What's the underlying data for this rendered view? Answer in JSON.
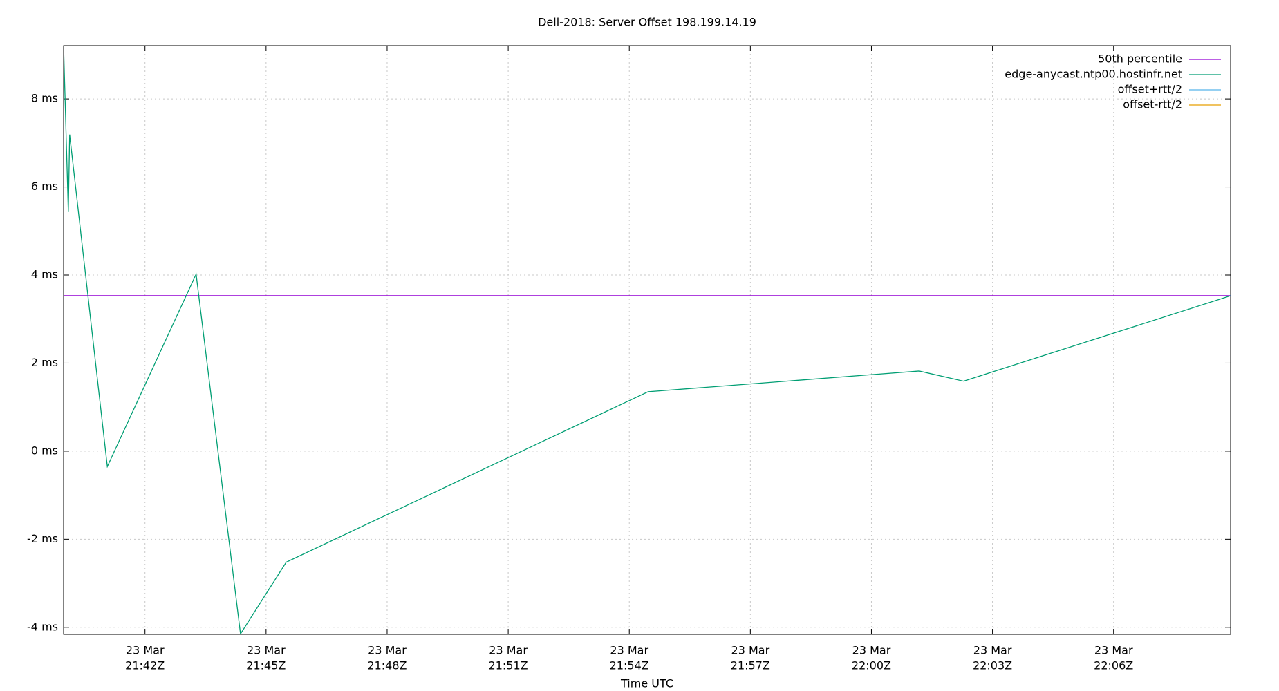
{
  "chart_data": {
    "type": "line",
    "title": "Dell-2018: Server Offset 198.199.14.19",
    "xlabel": "Time UTC",
    "series": [
      {
        "name": "50th percentile",
        "color": "#9400d3",
        "x": [
          "21:39:59",
          "22:08:54"
        ],
        "values": [
          3.53,
          3.53
        ]
      },
      {
        "name": "edge-anycast.ntp00.hostinfr.net",
        "color": "#009e73",
        "x": [
          "21:39:59",
          "21:40:06",
          "21:40:08",
          "21:41:04",
          "21:43:16",
          "21:44:22",
          "21:45:30",
          "21:54:28",
          "22:01:11",
          "22:02:17",
          "22:08:54"
        ],
        "values": [
          9.2,
          5.43,
          7.19,
          -0.35,
          4.02,
          -4.15,
          -2.52,
          1.35,
          1.82,
          1.59,
          3.53
        ]
      },
      {
        "name": "offset+rtt/2",
        "color": "#56b4e9",
        "x": [],
        "values": []
      },
      {
        "name": "offset-rtt/2",
        "color": "#e69f00",
        "x": [],
        "values": []
      }
    ],
    "xlim": [
      "21:39:59",
      "22:08:54"
    ],
    "xticks": [
      {
        "value": "21:42:00",
        "label": [
          "23 Mar",
          "21:42Z"
        ]
      },
      {
        "value": "21:45:00",
        "label": [
          "23 Mar",
          "21:45Z"
        ]
      },
      {
        "value": "21:48:00",
        "label": [
          "23 Mar",
          "21:48Z"
        ]
      },
      {
        "value": "21:51:00",
        "label": [
          "23 Mar",
          "21:51Z"
        ]
      },
      {
        "value": "21:54:00",
        "label": [
          "23 Mar",
          "21:54Z"
        ]
      },
      {
        "value": "21:57:00",
        "label": [
          "23 Mar",
          "21:57Z"
        ]
      },
      {
        "value": "22:00:00",
        "label": [
          "23 Mar",
          "22:00Z"
        ]
      },
      {
        "value": "22:03:00",
        "label": [
          "23 Mar",
          "22:03Z"
        ]
      },
      {
        "value": "22:06:00",
        "label": [
          "23 Mar",
          "22:06Z"
        ]
      }
    ],
    "ylim": [
      -4.16,
      9.21
    ],
    "yticks": [
      {
        "value": -4,
        "label": "-4 ms"
      },
      {
        "value": -2,
        "label": "-2 ms"
      },
      {
        "value": 0,
        "label": "0 ms"
      },
      {
        "value": 2,
        "label": "2 ms"
      },
      {
        "value": 4,
        "label": "4 ms"
      },
      {
        "value": 6,
        "label": "6 ms"
      },
      {
        "value": 8,
        "label": "8 ms"
      }
    ],
    "grid": true,
    "legend": "top-right"
  }
}
